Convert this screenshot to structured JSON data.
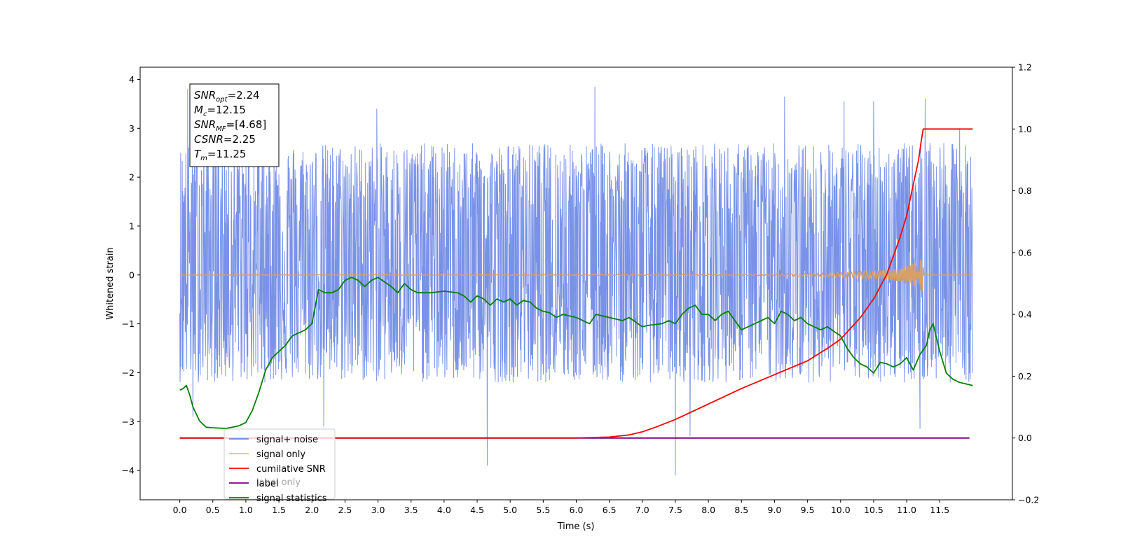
{
  "chart_data": {
    "type": "line",
    "title": "",
    "xlabel": "Time (s)",
    "ylabel": "Whitened strain",
    "xlim": [
      -0.6,
      12.6
    ],
    "ylim": [
      -4.6,
      4.25
    ],
    "y2lim": [
      -0.2,
      1.2
    ],
    "grid": false,
    "legend_position": "lower-left",
    "x_ticks": [
      "0.0",
      "0.5",
      "1.0",
      "1.5",
      "2.0",
      "2.5",
      "3.0",
      "3.5",
      "4.0",
      "4.5",
      "5.0",
      "5.5",
      "6.0",
      "6.5",
      "7.0",
      "7.5",
      "8.0",
      "8.5",
      "9.0",
      "9.5",
      "10.0",
      "10.5",
      "11.0",
      "11.5"
    ],
    "y_ticks": [
      "4",
      "3",
      "2",
      "1",
      "0",
      "−1",
      "−2",
      "−3",
      "−4"
    ],
    "y2_ticks": [
      "1.2",
      "1.0",
      "0.8",
      "0.6",
      "0.4",
      "0.2",
      "0.0",
      "−0.2"
    ],
    "annotation": {
      "lines": [
        {
          "sym": "SNR",
          "sub": "opt",
          "val": "=2.24"
        },
        {
          "sym": "M",
          "sub": "c",
          "val": "=12.15"
        },
        {
          "sym": "SNR",
          "sub": "MF",
          "val": "=[4.68]"
        },
        {
          "sym": "CSNR",
          "sub": "",
          "val": "=2.25"
        },
        {
          "sym": "T",
          "sub": "m",
          "val": "=11.25"
        }
      ]
    },
    "legend": [
      {
        "name": "signal+ noise",
        "color": "#6a86e4"
      },
      {
        "name": "signal only",
        "color": "#ffc04d"
      },
      {
        "name": "cumilative SNR",
        "color": "#ff0000"
      },
      {
        "name": "label",
        "color": "#800080"
      },
      {
        "name": "signal statistics",
        "color": "#008000"
      }
    ],
    "hidden_legend_text": [
      "label only"
    ],
    "series": [
      {
        "name": "signal+ noise",
        "axis": "left",
        "color": "#6a86e4",
        "x_range": [
          0.0,
          12.0
        ],
        "center": 0.3,
        "band": [
          -2.2,
          2.7
        ],
        "peaks_high": [
          [
            0.12,
            3.8
          ],
          [
            6.28,
            3.85
          ],
          [
            9.15,
            3.65
          ],
          [
            10.05,
            3.55
          ],
          [
            10.5,
            3.55
          ],
          [
            11.28,
            3.6
          ],
          [
            2.98,
            3.4
          ],
          [
            11.8,
            3.0
          ]
        ],
        "peaks_low": [
          [
            4.65,
            -3.9
          ],
          [
            7.5,
            -4.1
          ],
          [
            7.72,
            -3.3
          ],
          [
            11.2,
            -3.15
          ],
          [
            0.2,
            -2.9
          ],
          [
            2.18,
            -3.1
          ]
        ]
      },
      {
        "name": "signal only",
        "axis": "left",
        "color": "#d8a068",
        "x": [
          0.0,
          8.5,
          9.5,
          10.0,
          10.5,
          10.8,
          11.0,
          11.15,
          11.25,
          11.26,
          12.0
        ],
        "amplitude": [
          0.0,
          0.01,
          0.03,
          0.05,
          0.08,
          0.12,
          0.18,
          0.28,
          0.38,
          0.0,
          0.0
        ]
      },
      {
        "name": "cumilative SNR",
        "axis": "right",
        "color": "#ff0000",
        "x": [
          6.0,
          6.5,
          6.8,
          7.0,
          7.2,
          7.5,
          7.8,
          8.0,
          8.5,
          9.0,
          9.5,
          9.8,
          10.0,
          10.3,
          10.5,
          10.7,
          10.9,
          11.0,
          11.1,
          11.18,
          11.22,
          11.25,
          12.0
        ],
        "values": [
          0.0,
          0.003,
          0.01,
          0.02,
          0.035,
          0.06,
          0.09,
          0.11,
          0.16,
          0.205,
          0.25,
          0.29,
          0.32,
          0.39,
          0.45,
          0.53,
          0.65,
          0.72,
          0.82,
          0.9,
          0.96,
          1.0,
          1.0
        ]
      },
      {
        "name": "label",
        "axis": "right",
        "color": "#800080",
        "x": [
          0.0,
          11.95
        ],
        "values": [
          0.0,
          0.0
        ]
      },
      {
        "name": "signal statistics",
        "axis": "right",
        "color": "#008000",
        "x": [
          0.0,
          0.05,
          0.1,
          0.15,
          0.2,
          0.3,
          0.4,
          0.5,
          0.6,
          0.7,
          0.8,
          0.9,
          1.0,
          1.1,
          1.2,
          1.3,
          1.4,
          1.5,
          1.6,
          1.7,
          1.8,
          1.9,
          2.0,
          2.1,
          2.2,
          2.3,
          2.4,
          2.5,
          2.6,
          2.7,
          2.8,
          2.9,
          3.0,
          3.2,
          3.3,
          3.4,
          3.5,
          3.6,
          3.8,
          4.0,
          4.2,
          4.3,
          4.4,
          4.5,
          4.6,
          4.7,
          4.8,
          4.9,
          5.0,
          5.1,
          5.2,
          5.3,
          5.4,
          5.5,
          5.6,
          5.7,
          5.8,
          6.0,
          6.2,
          6.3,
          6.5,
          6.7,
          6.8,
          7.0,
          7.1,
          7.3,
          7.4,
          7.5,
          7.6,
          7.7,
          7.8,
          7.9,
          8.0,
          8.1,
          8.2,
          8.3,
          8.4,
          8.5,
          8.7,
          8.9,
          9.0,
          9.1,
          9.2,
          9.3,
          9.4,
          9.5,
          9.7,
          9.8,
          10.0,
          10.1,
          10.2,
          10.3,
          10.4,
          10.5,
          10.6,
          10.7,
          10.8,
          10.9,
          11.0,
          11.1,
          11.2,
          11.3,
          11.35,
          11.4,
          11.5,
          11.6,
          11.7,
          11.8,
          12.0
        ],
        "values": [
          0.155,
          0.16,
          0.17,
          0.14,
          0.1,
          0.055,
          0.035,
          0.033,
          0.032,
          0.031,
          0.035,
          0.04,
          0.05,
          0.09,
          0.15,
          0.22,
          0.26,
          0.28,
          0.3,
          0.33,
          0.34,
          0.35,
          0.37,
          0.48,
          0.47,
          0.47,
          0.48,
          0.51,
          0.52,
          0.51,
          0.49,
          0.51,
          0.52,
          0.49,
          0.47,
          0.5,
          0.48,
          0.47,
          0.47,
          0.475,
          0.47,
          0.46,
          0.44,
          0.46,
          0.45,
          0.43,
          0.45,
          0.44,
          0.45,
          0.43,
          0.445,
          0.44,
          0.42,
          0.41,
          0.405,
          0.39,
          0.4,
          0.39,
          0.37,
          0.4,
          0.39,
          0.38,
          0.39,
          0.36,
          0.365,
          0.37,
          0.38,
          0.37,
          0.4,
          0.42,
          0.43,
          0.4,
          0.4,
          0.38,
          0.4,
          0.41,
          0.38,
          0.35,
          0.37,
          0.39,
          0.37,
          0.41,
          0.4,
          0.38,
          0.39,
          0.37,
          0.35,
          0.36,
          0.33,
          0.29,
          0.26,
          0.24,
          0.23,
          0.21,
          0.245,
          0.24,
          0.23,
          0.24,
          0.26,
          0.22,
          0.27,
          0.3,
          0.35,
          0.37,
          0.28,
          0.21,
          0.19,
          0.18,
          0.17
        ]
      }
    ]
  }
}
